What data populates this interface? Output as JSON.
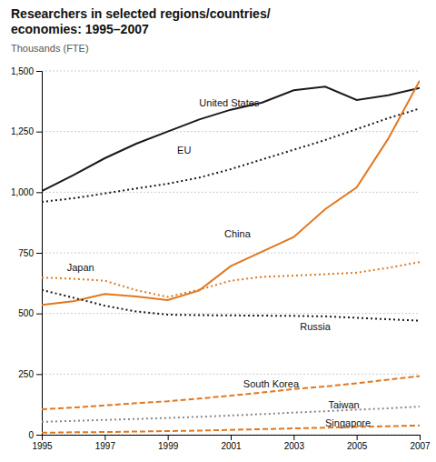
{
  "chart_data": {
    "type": "line",
    "title": "Researchers in selected regions/countries/\neconomies: 1995–2007",
    "subtitle": "Thousands (FTE)",
    "x": [
      1995,
      1996,
      1997,
      1998,
      1999,
      2000,
      2001,
      2002,
      2003,
      2004,
      2005,
      2006,
      2007
    ],
    "series": [
      {
        "name": "United States",
        "color": "#1a1a1a",
        "line_style": "solid",
        "values": [
          1005,
          1070,
          1140,
          1200,
          1250,
          1300,
          1340,
          1370,
          1420,
          1435,
          1380,
          1400,
          1430
        ]
      },
      {
        "name": "EU",
        "color": "#1a1a1a",
        "line_style": "dotted",
        "values": [
          960,
          975,
          995,
          1015,
          1035,
          1060,
          1095,
          1135,
          1175,
          1215,
          1260,
          1305,
          1345
        ]
      },
      {
        "name": "China",
        "color": "#e07820",
        "line_style": "solid",
        "values": [
          535,
          550,
          580,
          570,
          555,
          595,
          695,
          755,
          815,
          930,
          1020,
          1220,
          1460
        ]
      },
      {
        "name": "Japan",
        "color": "#e07820",
        "line_style": "dotted",
        "values": [
          648,
          643,
          635,
          596,
          568,
          598,
          635,
          651,
          656,
          662,
          668,
          688,
          712
        ]
      },
      {
        "name": "Russia",
        "color": "#1a1a1a",
        "line_style": "dotted",
        "values": [
          597,
          565,
          532,
          508,
          495,
          493,
          492,
          491,
          490,
          488,
          482,
          476,
          470
        ]
      },
      {
        "name": "South Korea",
        "color": "#e07820",
        "line_style": "dashed",
        "values": [
          105,
          112,
          121,
          130,
          138,
          149,
          161,
          174,
          188,
          199,
          212,
          227,
          242
        ]
      },
      {
        "name": "Taiwan",
        "color": "#888888",
        "line_style": "dotted",
        "values": [
          53,
          57,
          61,
          65,
          69,
          74,
          79,
          85,
          91,
          97,
          103,
          109,
          116
        ]
      },
      {
        "name": "Singapore",
        "color": "#e07820",
        "line_style": "dashed",
        "values": [
          8,
          10,
          11,
          13,
          15,
          17,
          20,
          23,
          26,
          29,
          32,
          35,
          38
        ]
      }
    ],
    "annotations": [
      {
        "text": "United States",
        "x": 2000.0,
        "y": 1368
      },
      {
        "text": "EU",
        "x": 1999.3,
        "y": 1172
      },
      {
        "text": "China",
        "x": 2000.8,
        "y": 830
      },
      {
        "text": "Japan",
        "x": 1995.8,
        "y": 690
      },
      {
        "text": "Russia",
        "x": 2003.2,
        "y": 445
      },
      {
        "text": "South Korea",
        "x": 2001.4,
        "y": 210
      },
      {
        "text": "Taiwan",
        "x": 2004.1,
        "y": 122
      },
      {
        "text": "Singapore",
        "x": 2004.0,
        "y": 48
      }
    ],
    "xlim": [
      1995,
      2007
    ],
    "ylim": [
      0,
      1500
    ],
    "xticks": [
      1995,
      1997,
      1999,
      2001,
      2003,
      2005,
      2007
    ],
    "yticks": [
      0,
      250,
      500,
      750,
      {
        "value": 1000,
        "label": "1,000"
      },
      {
        "value": 1250,
        "label": "1,250"
      },
      {
        "value": 1500,
        "label": "1,500"
      }
    ],
    "grid": true
  }
}
